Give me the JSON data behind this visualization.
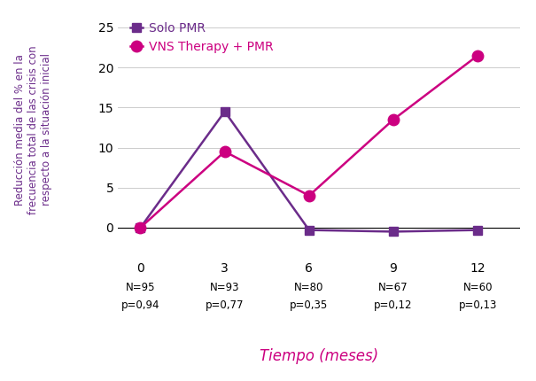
{
  "x": [
    0,
    3,
    6,
    9,
    12
  ],
  "pmr_only": [
    0,
    14.5,
    -0.3,
    -0.5,
    -0.3
  ],
  "vns_pmr": [
    0,
    9.5,
    4.0,
    13.5,
    21.5
  ],
  "pmr_color": "#6B2C8A",
  "vns_color": "#CC0080",
  "pmr_label": "Solo PMR",
  "vns_label": "VNS Therapy + PMR",
  "xlabel": "Tiempo (meses)",
  "ylabel_line1": "Reducción media del % en la",
  "ylabel_line2": "frecuencia total de las crisis con",
  "ylabel_line3": "respecto a la situación inicial",
  "ylim": [
    -2.5,
    27
  ],
  "yticks": [
    0,
    5,
    10,
    15,
    20,
    25
  ],
  "xticks": [
    0,
    3,
    6,
    9,
    12
  ],
  "xtick_labels": [
    "0",
    "3",
    "6",
    "9",
    "12"
  ],
  "n_labels": [
    "N=95",
    "N=93",
    "N=80",
    "N=67",
    "N=60"
  ],
  "p_labels": [
    "p=0,94",
    "p=0,77",
    "p=0,35",
    "p=0,12",
    "p=0,13"
  ],
  "background_color": "#FFFFFF",
  "grid_color": "#CCCCCC",
  "marker_size_pmr": 7,
  "marker_size_vns": 9,
  "linewidth": 1.8,
  "ylabel_color": "#6B2C8A",
  "xlabel_color": "#CC0080",
  "label_fontsize": 8.5,
  "tick_fontsize": 10,
  "legend_fontsize": 10,
  "annotation_fontsize": 8.5,
  "xlabel_fontsize": 12
}
